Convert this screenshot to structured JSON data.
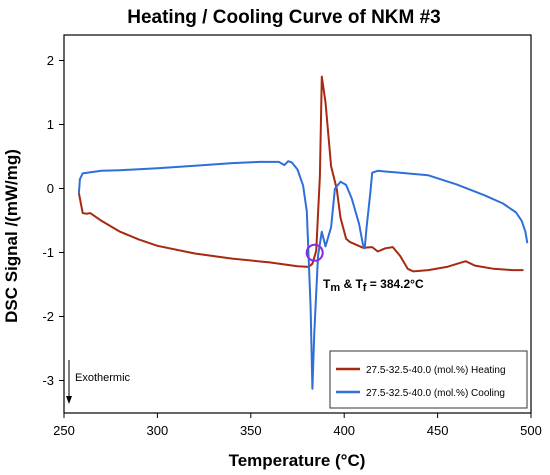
{
  "chart_data": {
    "type": "line",
    "title": "Heating / Cooling Curve of NKM #3",
    "xlabel": "Temperature (°C)",
    "ylabel": "DSC Signal /(mW/mg)",
    "xlim": [
      250,
      500
    ],
    "ylim": [
      -3.45,
      2.45
    ],
    "xticks": [
      "250",
      "300",
      "350",
      "400",
      "450",
      "500"
    ],
    "yticks": [
      "-3",
      "-2",
      "-1",
      "0",
      "1",
      "2"
    ],
    "legend_position": "bottom-right",
    "series": [
      {
        "name": "27.5-32.5-40.0 (mol.%) Heating",
        "color": "#a52a10",
        "points": [
          [
            258,
            -0.02
          ],
          [
            260,
            -0.33
          ],
          [
            262,
            -0.34
          ],
          [
            264,
            -0.33
          ],
          [
            270,
            -0.45
          ],
          [
            280,
            -0.62
          ],
          [
            290,
            -0.74
          ],
          [
            300,
            -0.84
          ],
          [
            320,
            -0.96
          ],
          [
            340,
            -1.04
          ],
          [
            360,
            -1.1
          ],
          [
            375,
            -1.16
          ],
          [
            381,
            -1.17
          ],
          [
            383,
            -1.12
          ],
          [
            385,
            -0.92
          ],
          [
            387,
            0.25
          ],
          [
            388,
            1.8
          ],
          [
            390,
            1.4
          ],
          [
            393,
            0.4
          ],
          [
            396,
            0.05
          ],
          [
            398,
            -0.4
          ],
          [
            401,
            -0.73
          ],
          [
            403,
            -0.78
          ],
          [
            410,
            -0.87
          ],
          [
            415,
            -0.86
          ],
          [
            418,
            -0.93
          ],
          [
            422,
            -0.88
          ],
          [
            426,
            -0.86
          ],
          [
            430,
            -1.0
          ],
          [
            434,
            -1.2
          ],
          [
            437,
            -1.24
          ],
          [
            445,
            -1.22
          ],
          [
            455,
            -1.17
          ],
          [
            465,
            -1.08
          ],
          [
            470,
            -1.15
          ],
          [
            480,
            -1.2
          ],
          [
            490,
            -1.22
          ],
          [
            496,
            -1.22
          ]
        ]
      },
      {
        "name": "27.5-32.5-40.0 (mol.%) Cooling",
        "color": "#2f6fd8",
        "points": [
          [
            258,
            -0.02
          ],
          [
            258.5,
            0.2
          ],
          [
            260,
            0.29
          ],
          [
            270,
            0.33
          ],
          [
            280,
            0.34
          ],
          [
            300,
            0.37
          ],
          [
            320,
            0.41
          ],
          [
            340,
            0.45
          ],
          [
            355,
            0.47
          ],
          [
            365,
            0.47
          ],
          [
            368,
            0.42
          ],
          [
            370,
            0.48
          ],
          [
            372,
            0.46
          ],
          [
            375,
            0.35
          ],
          [
            378,
            0.1
          ],
          [
            380,
            -0.3
          ],
          [
            382,
            -1.8
          ],
          [
            383,
            -3.07
          ],
          [
            384,
            -2.2
          ],
          [
            386,
            -1.0
          ],
          [
            388,
            -0.62
          ],
          [
            390,
            -0.85
          ],
          [
            393,
            -0.55
          ],
          [
            395,
            0.05
          ],
          [
            398,
            0.16
          ],
          [
            401,
            0.11
          ],
          [
            404,
            -0.1
          ],
          [
            408,
            -0.5
          ],
          [
            410,
            -0.82
          ],
          [
            411,
            -0.88
          ],
          [
            412,
            -0.55
          ],
          [
            414,
            0.0
          ],
          [
            415,
            0.3
          ],
          [
            418,
            0.33
          ],
          [
            430,
            0.3
          ],
          [
            445,
            0.26
          ],
          [
            460,
            0.12
          ],
          [
            475,
            -0.05
          ],
          [
            485,
            -0.18
          ],
          [
            492,
            -0.32
          ],
          [
            495,
            -0.45
          ],
          [
            497,
            -0.62
          ],
          [
            498,
            -0.8
          ]
        ]
      }
    ],
    "annotation": {
      "text_main_1": "T",
      "text_sub_1": "m",
      "text_main_2": " & T",
      "text_sub_2": "f",
      "text_main_3": " = 384.2°C",
      "circle_center": [
        384.2,
        -0.95
      ]
    },
    "exothermic_label": "Exothermic"
  }
}
